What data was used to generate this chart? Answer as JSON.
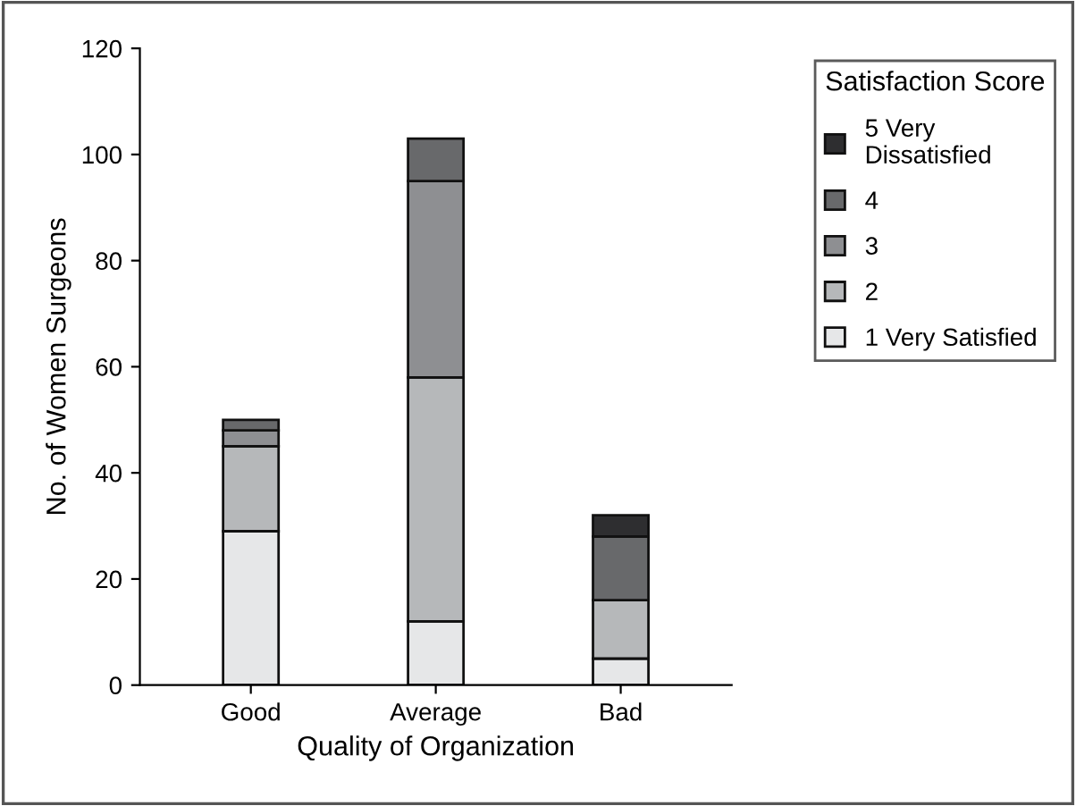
{
  "chart_data": {
    "type": "bar",
    "stacked": true,
    "xlabel": "Quality of Organization",
    "ylabel": "No. of Women Surgeons",
    "legend_title": "Satisfaction Score",
    "categories": [
      "Good",
      "Average",
      "Bad"
    ],
    "series": [
      {
        "name": "1 Very Satisfied",
        "color": "#e6e7e8",
        "values": [
          29,
          12,
          5
        ]
      },
      {
        "name": "2",
        "color": "#b6b8ba",
        "values": [
          16,
          46,
          11
        ]
      },
      {
        "name": "3",
        "color": "#8e8f92",
        "values": [
          3,
          37,
          null
        ]
      },
      {
        "name": "4",
        "color": "#68696b",
        "values": [
          2,
          8,
          12
        ]
      },
      {
        "name": "5 Very\nDissatisfied",
        "color": "#2e2e30",
        "values": [
          null,
          null,
          4
        ]
      }
    ],
    "ylim": [
      0,
      120
    ],
    "yticks": [
      0,
      20,
      40,
      60,
      80,
      100,
      120
    ],
    "grid": false,
    "legend": "top right"
  }
}
